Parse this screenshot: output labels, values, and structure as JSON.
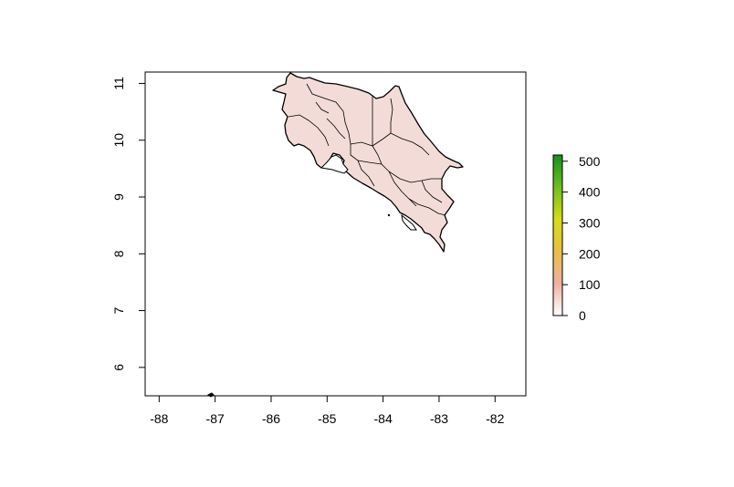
{
  "map": {
    "x_ticks": [
      "-88",
      "-87",
      "-86",
      "-85",
      "-84",
      "-83",
      "-82"
    ],
    "y_ticks": [
      "6",
      "7",
      "8",
      "9",
      "10",
      "11"
    ],
    "xlim": [
      -88.25,
      -81.45
    ],
    "ylim": [
      5.5,
      11.2
    ],
    "fill_color": "#f3dcd7",
    "border_color": "#000000"
  },
  "legend": {
    "ticks": [
      "0",
      "100",
      "200",
      "300",
      "400",
      "500"
    ],
    "range": [
      0,
      520
    ],
    "colors": [
      "#ffffff",
      "#eeb0a2",
      "#e7c23d",
      "#d6dc1a",
      "#6fbf1c",
      "#13921a"
    ]
  }
}
